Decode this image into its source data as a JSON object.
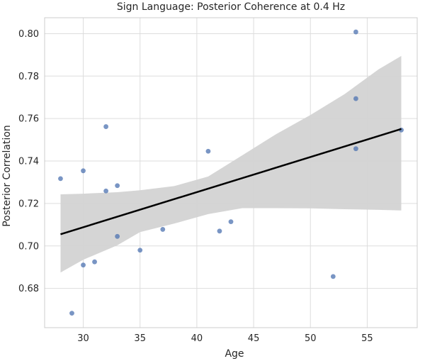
{
  "chart_data": {
    "type": "scatter",
    "title": "Sign Language: Posterior Coherence at 0.4 Hz",
    "xlabel": "Age",
    "ylabel": "Posterior Correlation",
    "xlim": [
      26.6,
      59.4
    ],
    "ylim": [
      0.6615,
      0.8075
    ],
    "xticks": [
      30,
      35,
      40,
      45,
      50,
      55
    ],
    "yticks": [
      0.68,
      0.7,
      0.72,
      0.74,
      0.76,
      0.78,
      0.8
    ],
    "ytick_labels": [
      "0.68",
      "0.70",
      "0.72",
      "0.74",
      "0.76",
      "0.78",
      "0.80"
    ],
    "grid": true,
    "colors": {
      "points": "#4c72b0",
      "fit_line": "#000000",
      "confidence_band": "#d3d3d3",
      "grid": "#dddddd"
    },
    "points": {
      "x": [
        28,
        29,
        30,
        30,
        31,
        32,
        32,
        33,
        33,
        35,
        37,
        41,
        42,
        43,
        52,
        54,
        54,
        54,
        58
      ],
      "y": [
        0.7317,
        0.6683,
        0.7354,
        0.691,
        0.6925,
        0.7562,
        0.7259,
        0.7284,
        0.7045,
        0.698,
        0.7078,
        0.7446,
        0.707,
        0.7114,
        0.6856,
        0.8008,
        0.7694,
        0.7458,
        0.7546
      ]
    },
    "regression": {
      "x": [
        28,
        58
      ],
      "y": [
        0.7055,
        0.7551
      ]
    },
    "confidence_band": {
      "x": [
        28,
        30,
        33,
        35,
        38,
        41,
        44,
        47,
        50,
        53,
        56,
        58
      ],
      "upper": [
        0.7243,
        0.7246,
        0.7253,
        0.7262,
        0.7282,
        0.7327,
        0.7427,
        0.7527,
        0.7617,
        0.7715,
        0.7832,
        0.7895
      ],
      "lower": [
        0.6875,
        0.6935,
        0.7003,
        0.7065,
        0.7105,
        0.715,
        0.7178,
        0.7178,
        0.7177,
        0.7173,
        0.717,
        0.7167
      ]
    }
  }
}
